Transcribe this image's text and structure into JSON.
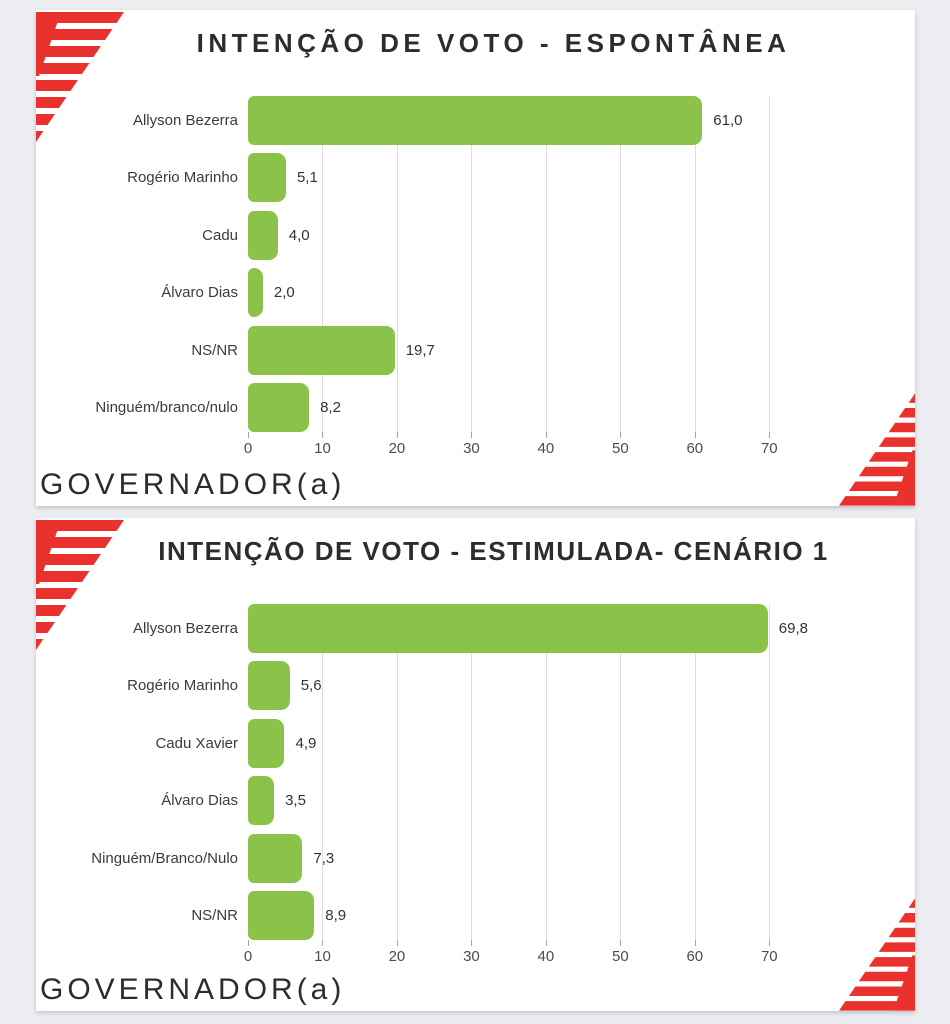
{
  "colors": {
    "brand_red": "#e9322d",
    "bar_green": "#8bc34a",
    "page_background": "#ecedf1",
    "card_background": "#ffffff"
  },
  "chart_data": [
    {
      "type": "bar",
      "orientation": "horizontal",
      "title": "INTENÇÃO DE VOTO - ESPONTÂNEA",
      "footer": "GOVERNADOR(a)",
      "categories": [
        "Allyson Bezerra",
        "Rogério Marinho",
        "Cadu",
        "Álvaro Dias",
        "NS/NR",
        "Ninguém/branco/nulo"
      ],
      "values": [
        61.0,
        5.1,
        4.0,
        2.0,
        19.7,
        8.2
      ],
      "value_labels": [
        "61,0",
        "5,1",
        "4,0",
        "2,0",
        "19,7",
        "8,2"
      ],
      "xlim": [
        0,
        85
      ],
      "xticks": [
        0,
        10,
        20,
        30,
        40,
        50,
        60,
        70
      ],
      "grid": "vertical",
      "legend": "none",
      "bar_color": "#8bc34a",
      "value_label_position": "outside-end"
    },
    {
      "type": "bar",
      "orientation": "horizontal",
      "title": "INTENÇÃO DE VOTO - ESTIMULADA- CENÁRIO 1",
      "footer": "GOVERNADOR(a)",
      "categories": [
        "Allyson Bezerra",
        "Rogério Marinho",
        "Cadu Xavier",
        "Álvaro Dias",
        "Ninguém/Branco/Nulo",
        "NS/NR"
      ],
      "values": [
        69.8,
        5.6,
        4.9,
        3.5,
        7.3,
        8.9
      ],
      "value_labels": [
        "69,8",
        "5,6",
        "4,9",
        "3,5",
        "7,3",
        "8,9"
      ],
      "xlim": [
        0,
        85
      ],
      "xticks": [
        0,
        10,
        20,
        30,
        40,
        50,
        60,
        70
      ],
      "grid": "vertical",
      "legend": "none",
      "bar_color": "#8bc34a",
      "value_label_position": "outside-end"
    }
  ]
}
